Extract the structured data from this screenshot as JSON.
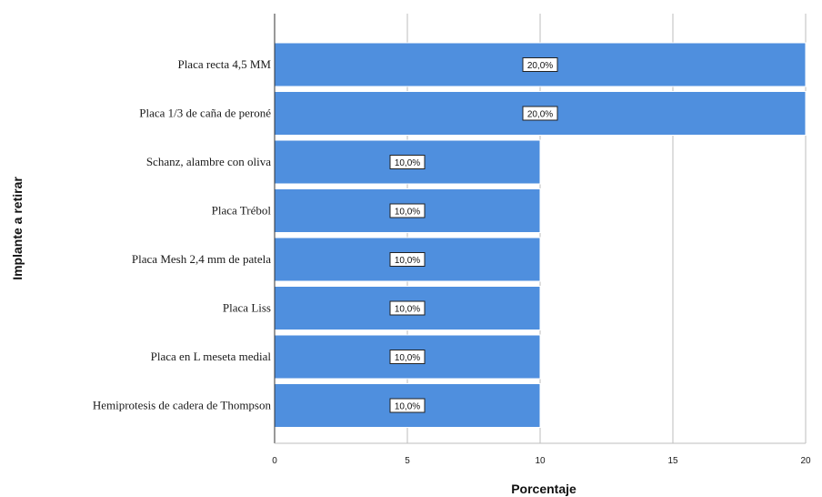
{
  "chart_data": {
    "type": "bar",
    "orientation": "horizontal",
    "title": "",
    "xlabel": "Porcentaje",
    "ylabel": "Implante a retirar",
    "xlim": [
      0,
      20
    ],
    "xticks": [
      "0",
      "5",
      "10",
      "15",
      "20"
    ],
    "grid": "vertical",
    "categories": [
      "Placa recta 4,5 MM",
      "Placa 1/3 de caña de peroné",
      "Schanz, alambre con oliva",
      "Placa Trébol",
      "Placa Mesh 2,4 mm de patela",
      "Placa Liss",
      "Placa en L meseta medial",
      "Hemiprotesis de cadera de Thompson"
    ],
    "values": [
      20,
      20,
      10,
      10,
      10,
      10,
      10,
      10
    ],
    "data_labels": [
      "20,0%",
      "20,0%",
      "10,0%",
      "10,0%",
      "10,0%",
      "10,0%",
      "10,0%",
      "10,0%"
    ],
    "colors": {
      "bar": "#4f8fde",
      "bar_stroke": "#ffffff",
      "grid": "#bdbdbd",
      "axis": "#333333"
    }
  }
}
